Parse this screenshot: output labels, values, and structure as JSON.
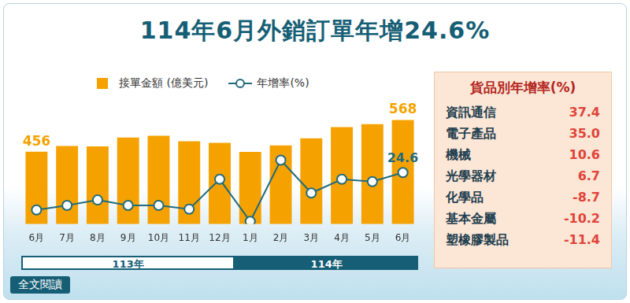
{
  "chart_data": {
    "type": "bar",
    "title": "114年6月外銷訂單年增24.6%",
    "categories": [
      "6月",
      "7月",
      "8月",
      "9月",
      "10月",
      "11月",
      "12月",
      "1月",
      "2月",
      "3月",
      "4月",
      "5月",
      "6月"
    ],
    "series": [
      {
        "name": "接單金額 (億美元)",
        "type": "bar",
        "color": "#f5a200",
        "values": [
          456,
          476,
          475,
          506,
          512,
          493,
          487,
          455,
          478,
          503,
          543,
          553,
          568
        ],
        "value_labels": [
          "456",
          null,
          null,
          null,
          null,
          null,
          null,
          null,
          null,
          null,
          null,
          null,
          "568"
        ]
      },
      {
        "name": "年增率(%)",
        "type": "line",
        "axis": "y2",
        "color": "#1f6b7d",
        "marker": "circle",
        "values": [
          3.1,
          5.7,
          8.8,
          5.7,
          5.7,
          3.5,
          20.7,
          -3.5,
          31.7,
          12.8,
          20.7,
          19.4,
          24.6
        ],
        "value_labels": [
          null,
          null,
          null,
          null,
          null,
          null,
          null,
          null,
          null,
          null,
          null,
          null,
          "24.6"
        ]
      }
    ],
    "ylim": [
      200,
      600
    ],
    "y2lim": [
      -5,
      60
    ],
    "tick_labels": "x",
    "grid": false,
    "data_labels": true,
    "legend": "top"
  },
  "year_bands": [
    {
      "label": "113年",
      "span": 7
    },
    {
      "label": "114年",
      "span": 6
    }
  ],
  "panel": {
    "title": "貨品別年增率(%)",
    "rows": [
      {
        "label": "資訊通信",
        "value": "37.4"
      },
      {
        "label": "電子產品",
        "value": "35.0"
      },
      {
        "label": "機械",
        "value": "10.6"
      },
      {
        "label": "光學器材",
        "value": "6.7"
      },
      {
        "label": "化學品",
        "value": "-8.7"
      },
      {
        "label": "基本金屬",
        "value": "-10.2"
      },
      {
        "label": "塑橡膠製品",
        "value": "-11.4"
      }
    ]
  },
  "footer": "全文閱讀"
}
